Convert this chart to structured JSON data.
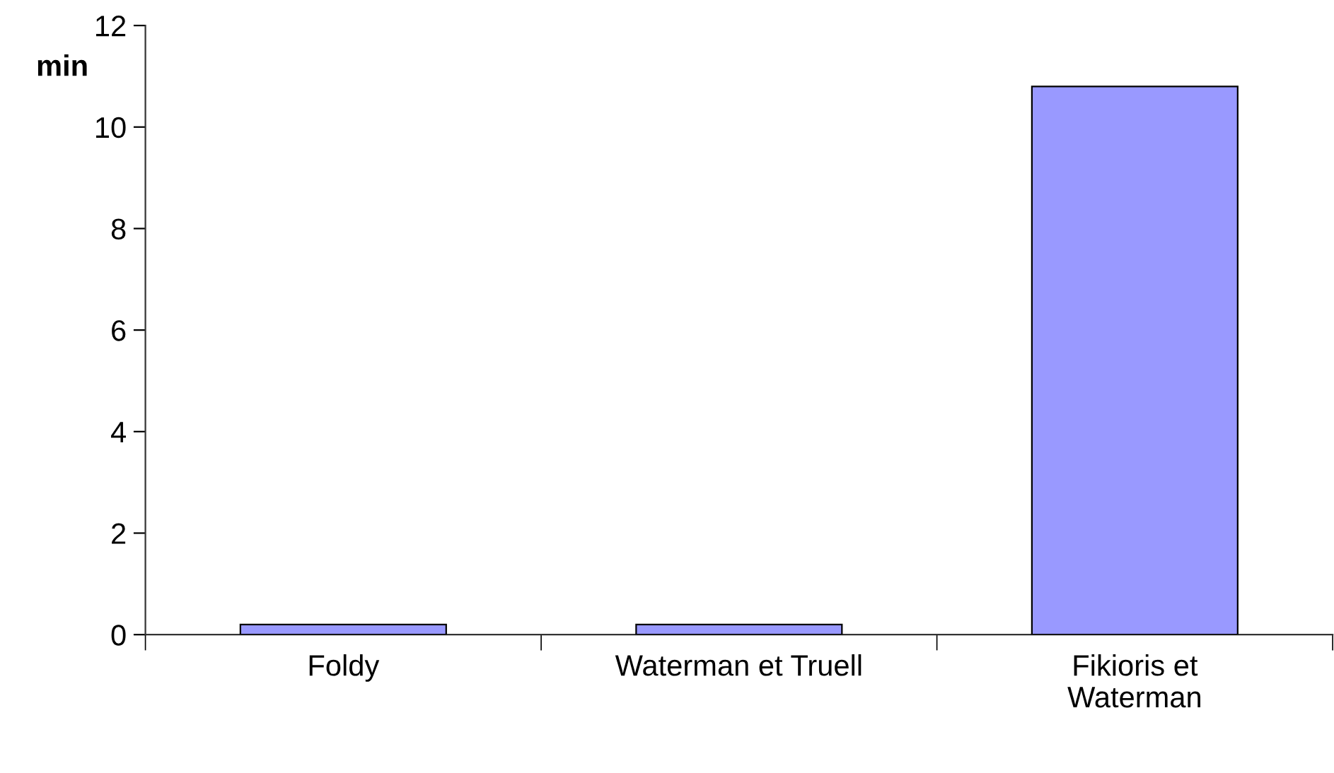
{
  "chart_data": {
    "type": "bar",
    "ylabel": "min",
    "categories": [
      "Foldy",
      "Waterman et Truell",
      "Fikioris et\nWaterman"
    ],
    "values": [
      0.2,
      0.2,
      10.8
    ],
    "color": "#9999ff",
    "ylim": [
      0,
      12
    ],
    "yticks": [
      0,
      2,
      4,
      6,
      8,
      10,
      12
    ],
    "grid": false,
    "legend": false
  }
}
